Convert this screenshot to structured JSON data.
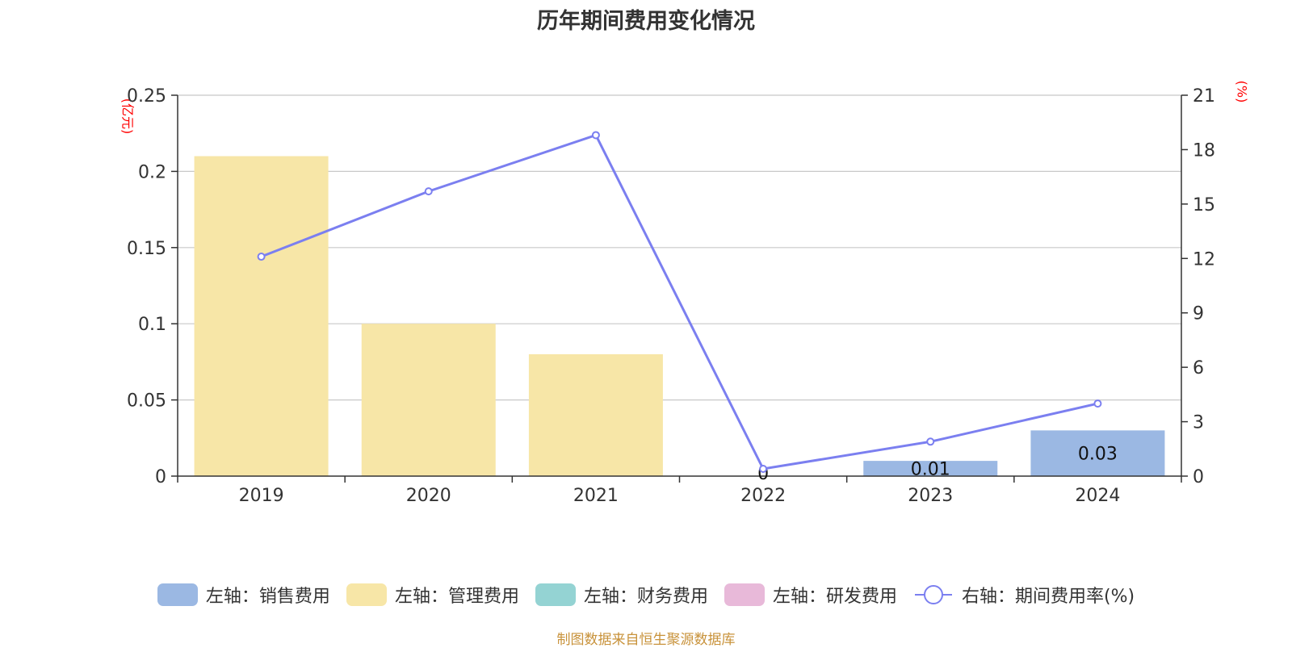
{
  "title": "历年期间费用变化情况",
  "source": "制图数据来自恒生聚源数据库",
  "chart_data": {
    "type": "bar",
    "categories": [
      "2019",
      "2020",
      "2021",
      "2022",
      "2023",
      "2024"
    ],
    "left_axis": {
      "unit": "(亿元)",
      "ylim": [
        0,
        0.25
      ],
      "ticks": [
        "0",
        "0.05",
        "0.1",
        "0.15",
        "0.2",
        "0.25"
      ],
      "tick_values": [
        0,
        0.05,
        0.1,
        0.15,
        0.2,
        0.25
      ]
    },
    "right_axis": {
      "unit": "(%)",
      "ylim": [
        0,
        21
      ],
      "ticks": [
        "0",
        "3",
        "6",
        "9",
        "12",
        "15",
        "18",
        "21"
      ],
      "tick_values": [
        0,
        3,
        6,
        9,
        12,
        15,
        18,
        21
      ]
    },
    "grid": true,
    "legend_position": "bottom",
    "series": [
      {
        "name": "左轴：销售费用",
        "type": "bar",
        "axis": "left",
        "color": "#9bb8e3",
        "values": [
          0,
          0,
          0,
          0,
          0.01,
          0.03
        ]
      },
      {
        "name": "左轴：管理费用",
        "type": "bar",
        "axis": "left",
        "color": "#f7e6a7",
        "values": [
          0.21,
          0.1,
          0.08,
          0,
          0,
          0
        ]
      },
      {
        "name": "左轴：财务费用",
        "type": "bar",
        "axis": "left",
        "color": "#94d3d3",
        "values": [
          0,
          0,
          0,
          0,
          0,
          0
        ]
      },
      {
        "name": "左轴：研发费用",
        "type": "bar",
        "axis": "left",
        "color": "#e8b9d9",
        "values": [
          0,
          0,
          0,
          0,
          0,
          0
        ]
      },
      {
        "name": "右轴：期间费用率(%)",
        "type": "line",
        "axis": "right",
        "color": "#7b7ff0",
        "values": [
          12.1,
          15.7,
          18.8,
          0.4,
          1.9,
          4.0
        ]
      }
    ],
    "data_labels": [
      {
        "category": "2022",
        "text": "0"
      },
      {
        "category": "2023",
        "text": "0.01"
      },
      {
        "category": "2024",
        "text": "0.03"
      }
    ]
  }
}
